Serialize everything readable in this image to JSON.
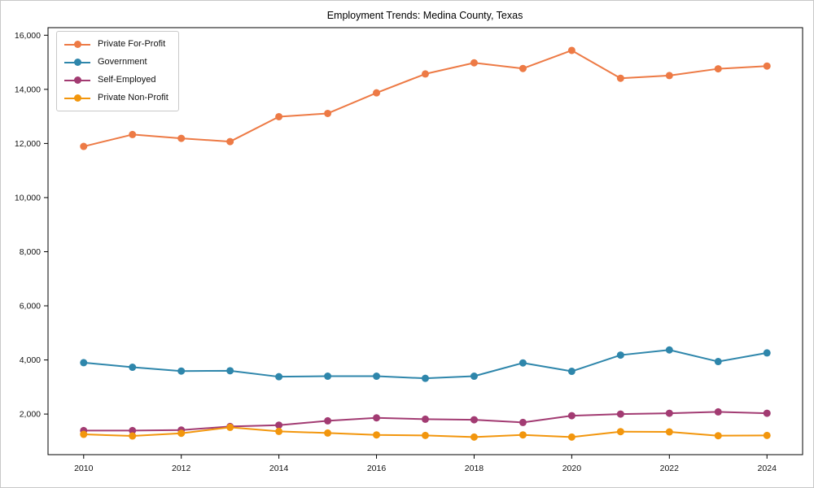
{
  "chart_data": {
    "type": "line",
    "title": "Employment Trends: Medina County, Texas",
    "xlabel": "",
    "ylabel": "",
    "grid": false,
    "legend_position": "upper-left",
    "x": [
      2010,
      2011,
      2012,
      2013,
      2014,
      2015,
      2016,
      2017,
      2018,
      2019,
      2020,
      2021,
      2022,
      2023,
      2024
    ],
    "x_ticks": [
      2010,
      2012,
      2014,
      2016,
      2018,
      2020,
      2022,
      2024
    ],
    "x_tick_labels": [
      "2010",
      "2012",
      "2014",
      "2016",
      "2018",
      "2020",
      "2022",
      "2024"
    ],
    "y_ticks": [
      2000,
      4000,
      6000,
      8000,
      10000,
      12000,
      14000,
      16000
    ],
    "y_tick_labels": [
      "2,000",
      "4,000",
      "6,000",
      "8,000",
      "10,000",
      "12,000",
      "14,000",
      "16,000"
    ],
    "xlim": [
      2009.27,
      2024.73
    ],
    "ylim": [
      500,
      16280
    ],
    "series": [
      {
        "name": "Private For-Profit",
        "color": "#ED7A45",
        "values": [
          11890,
          12330,
          12190,
          12070,
          12990,
          13110,
          13870,
          14570,
          14980,
          14770,
          15440,
          14410,
          14510,
          14760,
          14860
        ]
      },
      {
        "name": "Government",
        "color": "#2E86AB",
        "values": [
          3900,
          3730,
          3590,
          3600,
          3380,
          3400,
          3400,
          3320,
          3400,
          3890,
          3580,
          4180,
          4370,
          3940,
          4260
        ]
      },
      {
        "name": "Self-Employed",
        "color": "#A23B72",
        "values": [
          1390,
          1390,
          1410,
          1540,
          1590,
          1750,
          1860,
          1810,
          1790,
          1690,
          1940,
          2000,
          2030,
          2080,
          2030
        ]
      },
      {
        "name": "Private Non-Profit",
        "color": "#F2960D",
        "values": [
          1250,
          1190,
          1290,
          1510,
          1360,
          1300,
          1230,
          1210,
          1150,
          1230,
          1150,
          1350,
          1340,
          1200,
          1210
        ]
      }
    ]
  }
}
